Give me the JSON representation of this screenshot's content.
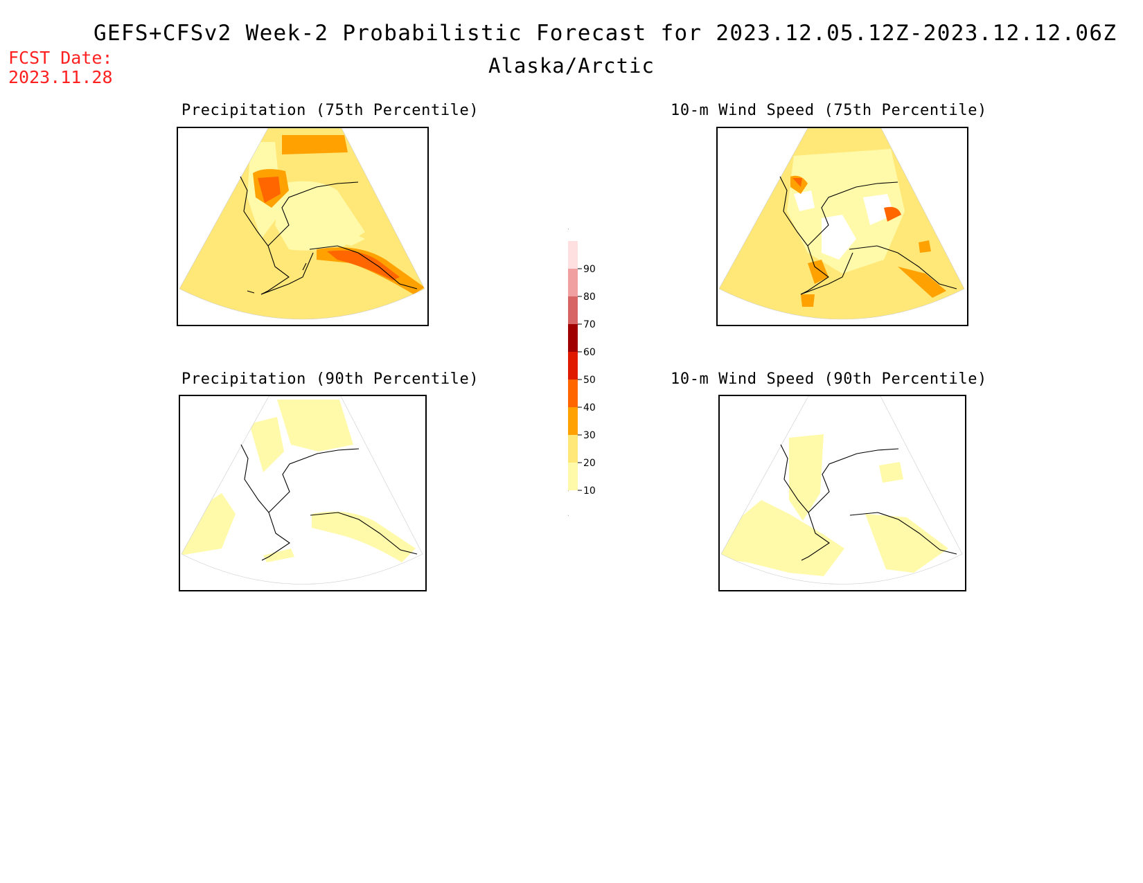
{
  "header": {
    "title": "GEFS+CFSv2 Week-2 Probabilistic Forecast for 2023.12.05.12Z-2023.12.12.06Z",
    "subtitle": "Alaska/Arctic",
    "fcst_label": "FCST Date:",
    "fcst_date": "2023.11.28"
  },
  "panels": [
    {
      "id": "precip75",
      "title": "Precipitation (75th Percentile)"
    },
    {
      "id": "wind75",
      "title": "10-m Wind Speed (75th Percentile)"
    },
    {
      "id": "precip90",
      "title": "Precipitation (90th Percentile)"
    },
    {
      "id": "wind90",
      "title": "10-m Wind Speed (90th Percentile)"
    }
  ],
  "colorbar": {
    "levels": [
      "10",
      "20",
      "30",
      "40",
      "50",
      "60",
      "70",
      "80",
      "90"
    ],
    "colors": [
      "#fffaaa",
      "#ffe878",
      "#ffa100",
      "#ff6600",
      "#e01a00",
      "#a00000",
      "#d86565",
      "#f0a0a0",
      "#ffe0e0"
    ]
  }
}
